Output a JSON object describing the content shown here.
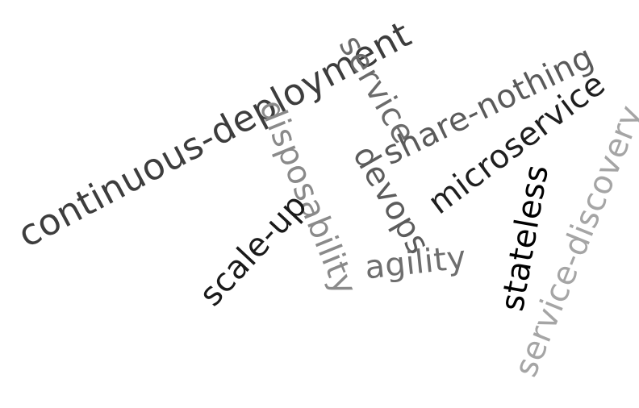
{
  "words": [
    {
      "id": "continuous-deployment",
      "text": "continuous-deployment",
      "color": "#3d3d3d"
    },
    {
      "id": "service",
      "text": "service",
      "color": "#6b6b6b"
    },
    {
      "id": "share-nothing",
      "text": "share-nothing",
      "color": "#5a5a5a"
    },
    {
      "id": "microservice",
      "text": "microservice",
      "color": "#1f1f1f"
    },
    {
      "id": "disposability",
      "text": "disposability",
      "color": "#8a8a8a"
    },
    {
      "id": "devops",
      "text": "devops",
      "color": "#5c5c5c"
    },
    {
      "id": "scale-up",
      "text": "scale-up",
      "color": "#1a1a1a"
    },
    {
      "id": "agility",
      "text": "agility",
      "color": "#6e6e6e"
    },
    {
      "id": "stateless",
      "text": "stateless",
      "color": "#000000"
    },
    {
      "id": "service-discovery",
      "text": "service-discovery",
      "color": "#a5a5a5"
    }
  ]
}
